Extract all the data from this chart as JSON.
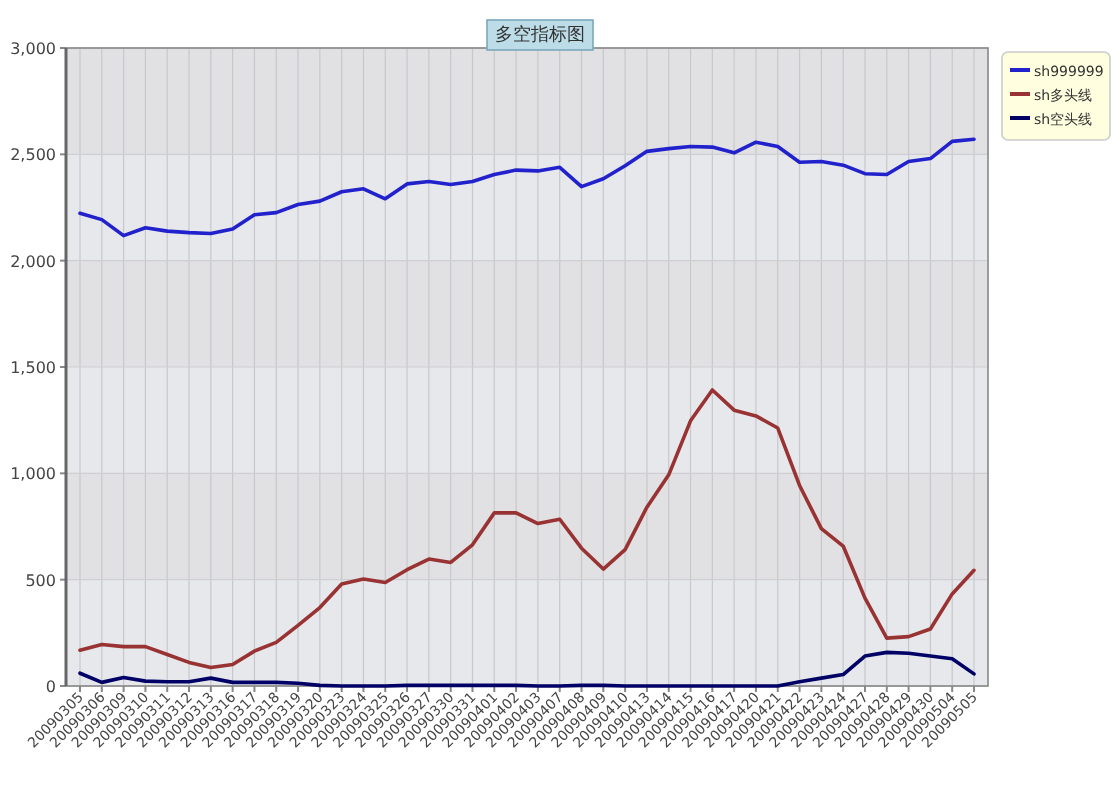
{
  "chart_data": {
    "type": "line",
    "title": "多空指标图",
    "categories": [
      "20090305",
      "20090306",
      "20090309",
      "20090310",
      "20090311",
      "20090312",
      "20090313",
      "20090316",
      "20090317",
      "20090318",
      "20090319",
      "20090320",
      "20090323",
      "20090324",
      "20090325",
      "20090326",
      "20090327",
      "20090330",
      "20090331",
      "20090401",
      "20090402",
      "20090403",
      "20090407",
      "20090408",
      "20090409",
      "20090410",
      "20090413",
      "20090414",
      "20090415",
      "20090416",
      "20090417",
      "20090420",
      "20090421",
      "20090422",
      "20090423",
      "20090424",
      "20090427",
      "20090428",
      "20090429",
      "20090430",
      "20090504",
      "20090505"
    ],
    "series": [
      {
        "name": "sh999999",
        "color": "#2222cc",
        "values": [
          2223,
          2193,
          2118,
          2155,
          2139,
          2132,
          2128,
          2149,
          2216,
          2226,
          2264,
          2280,
          2324,
          2338,
          2291,
          2361,
          2372,
          2358,
          2372,
          2405,
          2426,
          2422,
          2439,
          2348,
          2385,
          2446,
          2514,
          2527,
          2537,
          2534,
          2507,
          2557,
          2537,
          2463,
          2466,
          2449,
          2409,
          2405,
          2466,
          2480,
          2561,
          2571
        ]
      },
      {
        "name": "sh多头线",
        "color": "#993333",
        "values": [
          168,
          195,
          185,
          185,
          148,
          111,
          87,
          101,
          164,
          205,
          285,
          369,
          480,
          503,
          487,
          547,
          597,
          581,
          664,
          814,
          814,
          764,
          784,
          648,
          550,
          641,
          841,
          993,
          1247,
          1392,
          1297,
          1270,
          1213,
          943,
          740,
          658,
          413,
          225,
          232,
          268,
          433,
          544
        ]
      },
      {
        "name": "sh空头线",
        "color": "#000066",
        "values": [
          60,
          17,
          40,
          23,
          20,
          20,
          37,
          17,
          17,
          17,
          13,
          3,
          0,
          0,
          0,
          3,
          3,
          3,
          3,
          3,
          3,
          0,
          0,
          3,
          3,
          0,
          0,
          0,
          0,
          0,
          0,
          0,
          0,
          20,
          37,
          54,
          141,
          158,
          154,
          141,
          128,
          57
        ]
      }
    ],
    "ylim": [
      0,
      3000
    ],
    "yticks": [
      {
        "value": 0,
        "label": "0"
      },
      {
        "value": 500,
        "label": "500"
      },
      {
        "value": 1000,
        "label": "1,000"
      },
      {
        "value": 1500,
        "label": "1,500"
      },
      {
        "value": 2000,
        "label": "2,000"
      },
      {
        "value": 2500,
        "label": "2,500"
      },
      {
        "value": 3000,
        "label": "3,000"
      }
    ],
    "grid": true,
    "legend": "top right",
    "marker": "none",
    "line_style": "solid"
  }
}
